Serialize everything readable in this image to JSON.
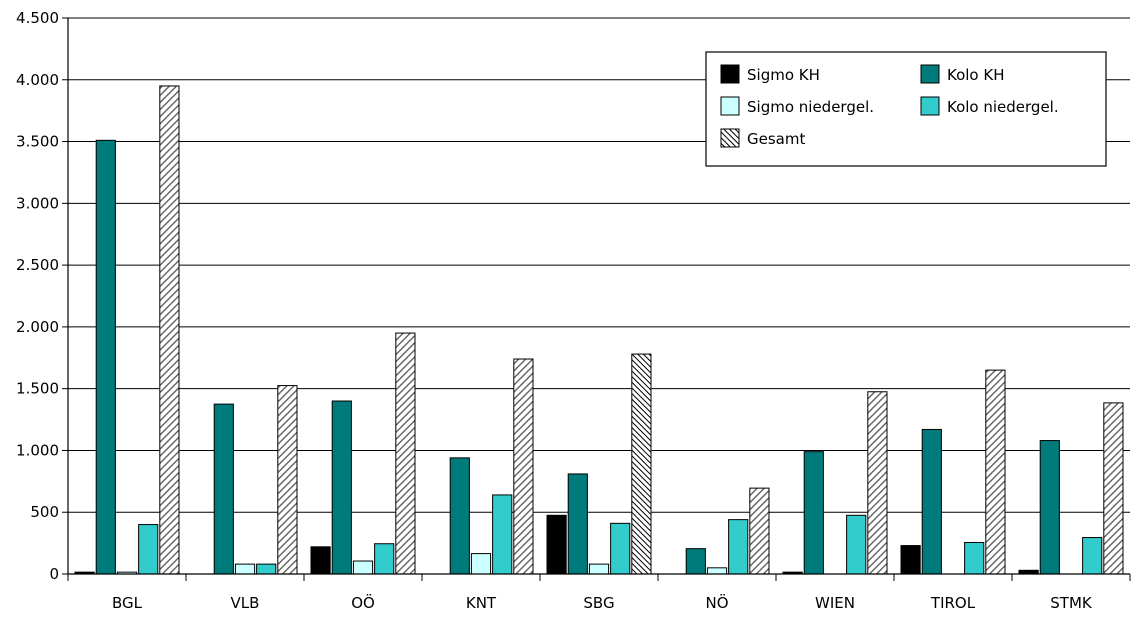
{
  "chart_data": {
    "type": "bar",
    "categories": [
      "BGL",
      "VLB",
      "OÖ",
      "KNT",
      "SBG",
      "NÖ",
      "WIEN",
      "TIROL",
      "STMK"
    ],
    "ylim": [
      0,
      4500
    ],
    "yticks": [
      0,
      500,
      1000,
      1500,
      2000,
      2500,
      3000,
      3500,
      4000,
      4500
    ],
    "ytick_labels": [
      "0",
      "500",
      "1.000",
      "1.500",
      "2.000",
      "2.500",
      "3.000",
      "3.500",
      "4.000",
      "4.500"
    ],
    "grid": true,
    "legend_position": "top-right",
    "series": [
      {
        "name": "Sigmo KH",
        "color": "#000000",
        "pattern": "solid",
        "values": [
          15,
          0,
          220,
          0,
          475,
          0,
          15,
          230,
          30
        ]
      },
      {
        "name": "Kolo KH",
        "color": "#007b7b",
        "pattern": "solid",
        "values": [
          3510,
          1375,
          1400,
          940,
          810,
          205,
          990,
          1170,
          1080
        ]
      },
      {
        "name": "Sigmo niedergel.",
        "color": "#ccffff",
        "pattern": "solid",
        "values": [
          15,
          80,
          105,
          165,
          80,
          50,
          0,
          0,
          0
        ]
      },
      {
        "name": "Kolo niedergel.",
        "color": "#33cccc",
        "pattern": "solid",
        "values": [
          400,
          80,
          245,
          640,
          410,
          440,
          475,
          255,
          295
        ]
      },
      {
        "name": "Gesamt",
        "color": "#808080",
        "pattern": "hatch",
        "values": [
          3950,
          1525,
          1950,
          1740,
          1780,
          695,
          1475,
          1650,
          1385
        ]
      }
    ]
  }
}
